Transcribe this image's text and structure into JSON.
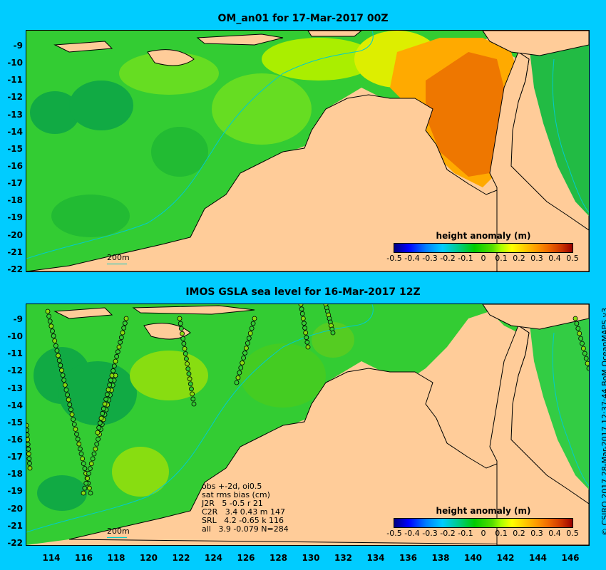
{
  "top_panel": {
    "title": "OM_an01 for 17-Mar-2017 00Z",
    "y_ticks": [
      "-9",
      "-10",
      "-11",
      "-12",
      "-13",
      "-14",
      "-15",
      "-16",
      "-17",
      "-18",
      "-19",
      "-20",
      "-21",
      "-22"
    ],
    "scale_label": "200m",
    "legend": {
      "title": "height anomaly (m)",
      "ticks": [
        "-0.5",
        "-0.4",
        "-0.3",
        "-0.2",
        "-0.1",
        "0",
        "0.1",
        "0.2",
        "0.3",
        "0.4",
        "0.5"
      ]
    }
  },
  "bottom_panel": {
    "title": "IMOS GSLA sea level  for 16-Mar-2017 12Z",
    "y_ticks": [
      "-9",
      "-10",
      "-11",
      "-12",
      "-13",
      "-14",
      "-15",
      "-16",
      "-17",
      "-18",
      "-19",
      "-20",
      "-21",
      "-22"
    ],
    "scale_label": "200m",
    "legend": {
      "title": "height anomaly (m)",
      "ticks": [
        "-0.5",
        "-0.4",
        "-0.3",
        "-0.2",
        "-0.1",
        "0",
        "0.1",
        "0.2",
        "0.3",
        "0.4",
        "0.5"
      ]
    },
    "stats": [
      "obs +-2d, oi0.5",
      "sat rms bias (cm)",
      "J2R   5 -0.5 r 21",
      "C2R   3.4 0.43 m 147",
      "SRL   4.2 -0.65 k 116",
      "all   3.9 -0.079 N=284"
    ]
  },
  "x_ticks": [
    "114",
    "116",
    "118",
    "120",
    "122",
    "124",
    "126",
    "128",
    "130",
    "132",
    "134",
    "136",
    "138",
    "140",
    "142",
    "144",
    "146"
  ],
  "credit": "© CSIRO 2017  28-Mar-2017 12:37:44 BoM OceanMAPS v3",
  "colors": {
    "background": "#00ccff",
    "land": "#ffcc99",
    "ocean_green": "#33cc33",
    "anomaly_orange": "#ee8800",
    "isobath": "#00cccc"
  }
}
